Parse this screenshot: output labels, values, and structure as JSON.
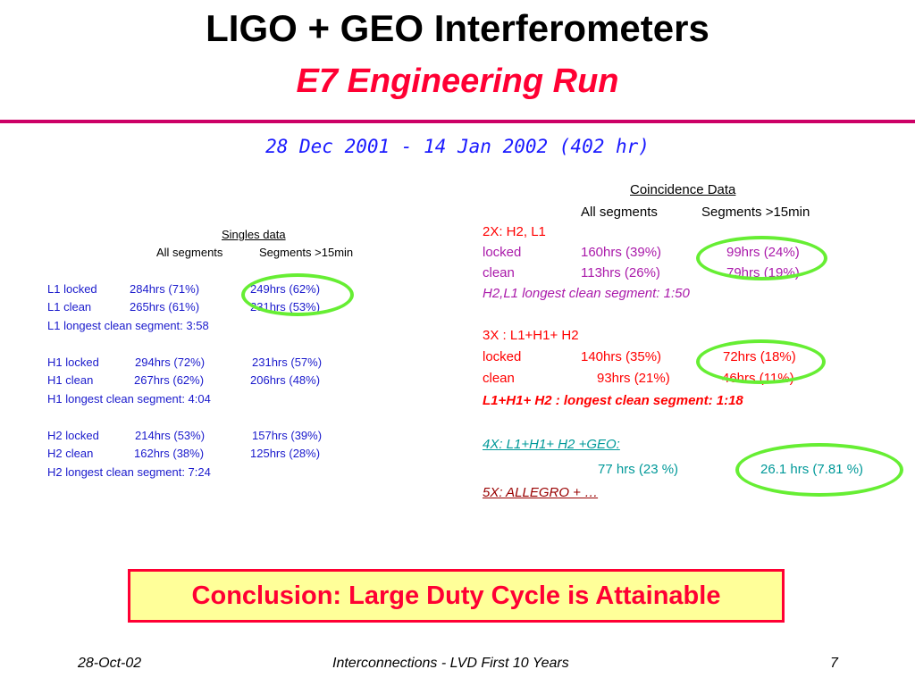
{
  "header": {
    "title": "LIGO + GEO Interferometers",
    "subtitle": "E7 Engineering Run",
    "date_range": "28 Dec 2001 - 14 Jan 2002 (402 hr)"
  },
  "singles": {
    "heading": "Singles data",
    "col_all": "All segments",
    "col_15": "Segments >15min",
    "rows": [
      {
        "label": "L1 locked",
        "all": "284hrs (71%)",
        "seg": "249hrs (62%)"
      },
      {
        "label": "L1 clean",
        "all": "265hrs (61%)",
        "seg": "231hrs (53%)"
      },
      {
        "note": "L1 longest clean segment: 3:58"
      },
      {
        "label": "H1 locked",
        "all": "294hrs (72%)",
        "seg": "231hrs (57%)"
      },
      {
        "label": "H1 clean",
        "all": "267hrs (62%)",
        "seg": "206hrs (48%)"
      },
      {
        "note": "H1 longest clean segment: 4:04"
      },
      {
        "label": "H2 locked",
        "all": "214hrs (53%)",
        "seg": "157hrs (39%)"
      },
      {
        "label": "H2 clean",
        "all": "162hrs (38%)",
        "seg": "125hrs (28%)"
      },
      {
        "note": "H2 longest clean segment: 7:24"
      }
    ]
  },
  "coincidence": {
    "heading": "Coincidence Data",
    "col_all": "All segments",
    "col_15": "Segments >15min",
    "x2": {
      "title": "2X: H2, L1",
      "locked": {
        "label": "locked",
        "all": "160hrs (39%)",
        "seg": "99hrs (24%)"
      },
      "clean": {
        "label": "clean",
        "all": "113hrs (26%)",
        "seg": "79hrs (19%)"
      },
      "note": "H2,L1 longest clean segment: 1:50"
    },
    "x3": {
      "title": "3X :  L1+H1+ H2",
      "locked": {
        "label": "locked",
        "all": "140hrs (35%)",
        "seg": "72hrs (18%)"
      },
      "clean": {
        "label": "clean",
        "all": "93hrs (21%)",
        "seg": "46hrs (11%)"
      },
      "note": "L1+H1+ H2 : longest clean segment: 1:18"
    },
    "x4": {
      "title": "4X: L1+H1+ H2 +GEO:",
      "all": "77 hrs (23 %)",
      "seg": "26.1 hrs (7.81 %)"
    },
    "x5": {
      "title": "5X: ALLEGRO +  …"
    }
  },
  "conclusion": "Conclusion:  Large Duty Cycle is Attainable",
  "footer": {
    "date": "28-Oct-02",
    "center": "Interconnections - LVD First 10 Years",
    "page": "7"
  },
  "colors": {
    "title_red": "#ff0033",
    "rule_magenta": "#cc0066",
    "singles_blue": "#1a1acc",
    "highlight_green": "#66ee33",
    "conclusion_fill": "#ffff99"
  }
}
